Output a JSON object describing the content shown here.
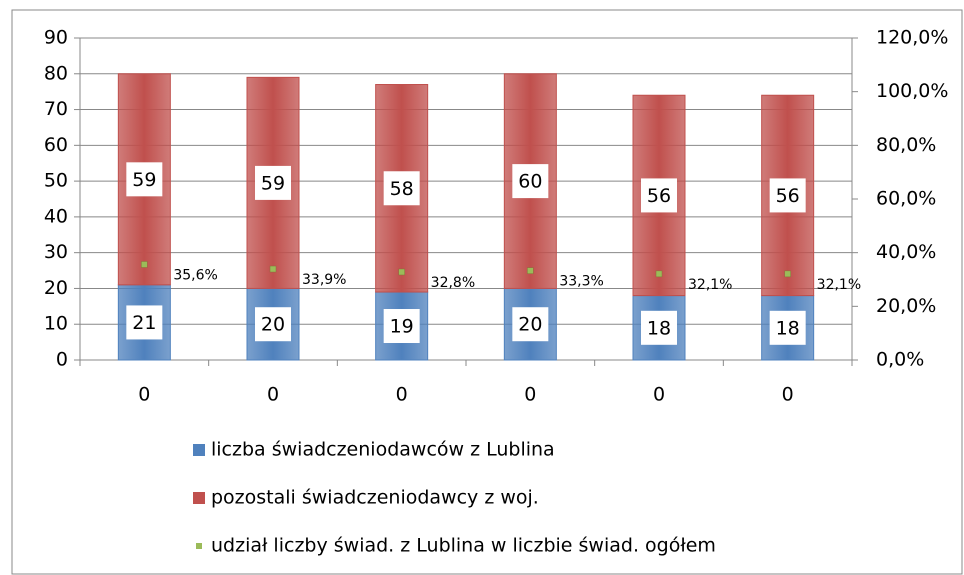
{
  "chart_data": {
    "type": "bar",
    "stacked": true,
    "categories": [
      "0",
      "0",
      "0",
      "0",
      "0",
      "0"
    ],
    "series": [
      {
        "name": "liczba świadczeniodawców z Lublina",
        "color": "#4f81bd",
        "values": [
          21,
          20,
          19,
          20,
          18,
          18
        ]
      },
      {
        "name": "pozostali świadczeniodawcy z woj.",
        "color": "#c0504d",
        "values": [
          59,
          59,
          58,
          60,
          56,
          56
        ]
      },
      {
        "name": "udział liczby świad. z Lublina w liczbie świad. ogółem",
        "color": "#9bbb59",
        "axis": "y2",
        "values": [
          35.6,
          33.9,
          32.8,
          33.3,
          32.1,
          32.1
        ],
        "value_labels": [
          "35,6%",
          "33,9%",
          "32,8%",
          "33,3%",
          "32,1%",
          "32,1%"
        ]
      }
    ],
    "ylim": [
      0,
      90
    ],
    "yticks": [
      0,
      10,
      20,
      30,
      40,
      50,
      60,
      70,
      80,
      90
    ],
    "y2lim": [
      0,
      120
    ],
    "y2ticks": [
      {
        "value": 0,
        "label": "0,0%"
      },
      {
        "value": 20,
        "label": "20,0%"
      },
      {
        "value": 40,
        "label": "40,0%"
      },
      {
        "value": 60,
        "label": "60,0%"
      },
      {
        "value": 80,
        "label": "80,0%"
      },
      {
        "value": 100,
        "label": "100,0%"
      },
      {
        "value": 120,
        "label": "120,0%"
      }
    ],
    "grid": true,
    "legend": "bottom"
  }
}
